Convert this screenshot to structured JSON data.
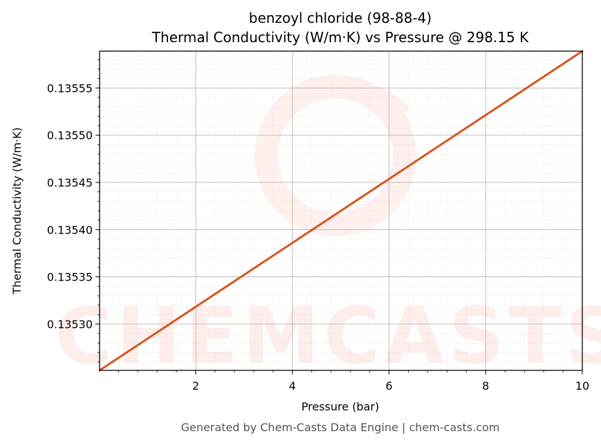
{
  "chart_data": {
    "type": "line",
    "title": "benzoyl chloride (98-88-4)",
    "subtitle": "Thermal Conductivity (W/m·K) vs Pressure @ 298.15 K",
    "xlabel": "Pressure (bar)",
    "ylabel": "Thermal Conductivity (W/m·K)",
    "xlim": [
      0.01,
      10
    ],
    "ylim": [
      0.135251,
      0.135589
    ],
    "xticks": [
      2,
      4,
      6,
      8,
      10
    ],
    "yticks": [
      0.1353,
      0.13535,
      0.1354,
      0.13545,
      0.1355,
      0.13555
    ],
    "xtick_labels": [
      "2",
      "4",
      "6",
      "8",
      "10"
    ],
    "ytick_labels": [
      "0.13530",
      "0.13535",
      "0.13540",
      "0.13545",
      "0.13550",
      "0.13555"
    ],
    "grid": true,
    "series": [
      {
        "color": "#d9531e",
        "x": [
          0.01,
          10
        ],
        "y": [
          0.135251,
          0.135589
        ]
      }
    ]
  },
  "watermark": {
    "text": "CHEMCASTS",
    "color": "#fde3df"
  },
  "footer": "Generated by Chem-Casts Data Engine | chem-casts.com"
}
